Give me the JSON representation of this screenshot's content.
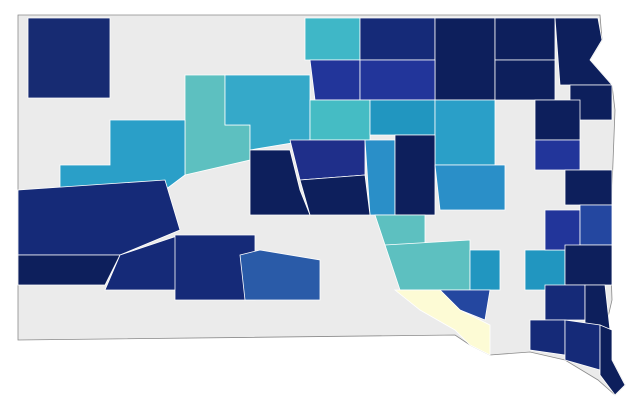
{
  "map": {
    "regions": [
      {
        "color": "#172b72"
      },
      {
        "color": "#3fb7c7"
      },
      {
        "color": "#152a78"
      },
      {
        "color": "#0d1f5c"
      },
      {
        "color": "#0d1f5c"
      },
      {
        "color": "#0d1f5c"
      },
      {
        "color": "#22359a"
      },
      {
        "color": "#22359a"
      },
      {
        "color": "#0d1f5c"
      },
      {
        "color": "#0d1f5c"
      },
      {
        "color": "#5dc0c0"
      },
      {
        "color": "#35a9c9"
      },
      {
        "color": "#45bcc4"
      },
      {
        "color": "#2196c0"
      },
      {
        "color": "#2a9fc8"
      },
      {
        "color": "#0d1f5c"
      },
      {
        "color": "#2a9fc8"
      },
      {
        "color": "#22359a"
      },
      {
        "color": "#0d1f5c"
      },
      {
        "color": "#1f2f8a"
      },
      {
        "color": "#2a8fc8"
      },
      {
        "color": "#0d1f5c"
      },
      {
        "color": "#2a8fc8"
      },
      {
        "color": "#0d1f5c"
      },
      {
        "color": "#0d1f5c"
      },
      {
        "color": "#152a78"
      },
      {
        "color": "#0d1f5c"
      },
      {
        "color": "#152a78"
      },
      {
        "color": "#152a78"
      },
      {
        "color": "#2a5ba8"
      },
      {
        "color": "#5dc0c0"
      },
      {
        "color": "#5dc0c0"
      },
      {
        "color": "#2196c0"
      },
      {
        "color": "#2196c0"
      },
      {
        "color": "#22359a"
      },
      {
        "color": "#2447a0"
      },
      {
        "color": "#0d1f5c"
      },
      {
        "color": "#2447a0"
      },
      {
        "color": "#fdfbd5"
      },
      {
        "color": "#152a78"
      },
      {
        "color": "#0d1f5c"
      },
      {
        "color": "#152a78"
      },
      {
        "color": "#152a78"
      },
      {
        "color": "#0d1f5c"
      }
    ]
  }
}
